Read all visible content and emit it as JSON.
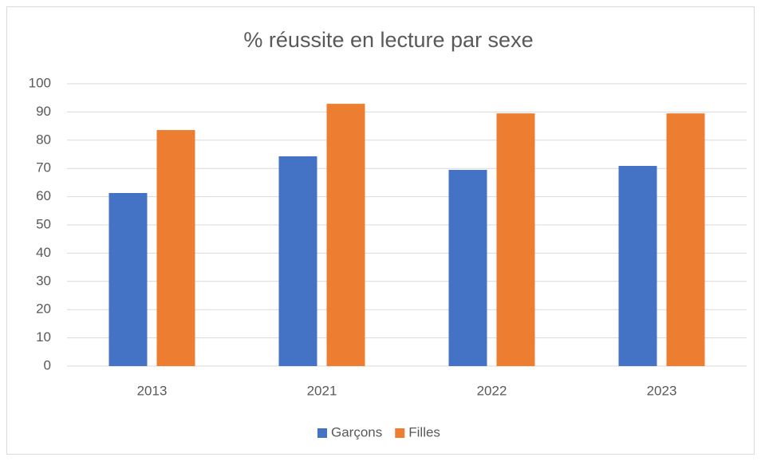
{
  "chart_data": {
    "type": "bar",
    "title": "% réussite en lecture par sexe",
    "categories": [
      "2013",
      "2021",
      "2022",
      "2023"
    ],
    "series": [
      {
        "name": "Garçons",
        "color": "#4472c4",
        "values": [
          61.3,
          74.3,
          69.5,
          70.9
        ]
      },
      {
        "name": "Filles",
        "color": "#ed7d31",
        "values": [
          83.6,
          92.9,
          89.5,
          89.5
        ]
      }
    ],
    "ylim": [
      0,
      100
    ],
    "yticks": [
      0,
      10,
      20,
      30,
      40,
      50,
      60,
      70,
      80,
      90,
      100
    ],
    "grid": true,
    "legend": "bottom"
  }
}
